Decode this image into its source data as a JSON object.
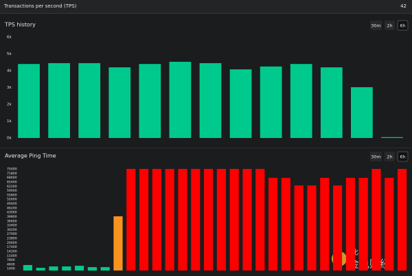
{
  "header": {
    "label": "Transactions per second (TPS)",
    "value": 42
  },
  "watermark": {
    "logo": "比推",
    "text": "金色财经"
  },
  "chart_data": [
    {
      "type": "bar",
      "title": "TPS history",
      "ranges": [
        "30m",
        "2h",
        "6h"
      ],
      "selected_range": 2,
      "values": [
        4400,
        4450,
        4450,
        4200,
        4400,
        4530,
        4450,
        4080,
        4250,
        4400,
        4200,
        3020,
        50
      ],
      "color": "#00c98d",
      "ylim": [
        0,
        6000
      ],
      "yticks": [
        {
          "value": 0,
          "label": "0k"
        },
        {
          "value": 1000,
          "label": "1k"
        },
        {
          "value": 2000,
          "label": "2k"
        },
        {
          "value": 3000,
          "label": "3k"
        },
        {
          "value": 4000,
          "label": "4k"
        },
        {
          "value": 5000,
          "label": "5k"
        },
        {
          "value": 6000,
          "label": "6k"
        }
      ],
      "grid": false
    },
    {
      "type": "bar",
      "title": "Average Ping Time",
      "ranges": [
        "30m",
        "2h",
        "6h"
      ],
      "selected_range": 2,
      "values": [
        4050,
        2000,
        3000,
        3000,
        3500,
        2500,
        2500,
        40000,
        75000,
        75000,
        75000,
        75000,
        75000,
        75000,
        75000,
        75000,
        75000,
        75000,
        75000,
        68400,
        68400,
        62800,
        62800,
        68400,
        62800,
        68400,
        68400,
        75000,
        68400,
        75000
      ],
      "colors": [
        "#00c98d",
        "#00c98d",
        "#00c98d",
        "#00c98d",
        "#00c98d",
        "#00c98d",
        "#00c98d",
        "#f7931e",
        "#ff0000",
        "#ff0000",
        "#ff0000",
        "#ff0000",
        "#ff0000",
        "#ff0000",
        "#ff0000",
        "#ff0000",
        "#ff0000",
        "#ff0000",
        "#ff0000",
        "#ff0000",
        "#ff0000",
        "#ff0000",
        "#ff0000",
        "#ff0000",
        "#ff0000",
        "#ff0000",
        "#ff0000",
        "#ff0000",
        "#ff0000",
        "#ff0000"
      ],
      "ylim": [
        0,
        75000
      ],
      "yticks": [
        1400,
        4600,
        7800,
        11000,
        14200,
        17400,
        20600,
        23800,
        27000,
        30200,
        33400,
        36600,
        39800,
        43000,
        46200,
        49400,
        52600,
        55800,
        59000,
        62200,
        65400,
        68600,
        71800,
        75000
      ],
      "grid": false
    }
  ]
}
